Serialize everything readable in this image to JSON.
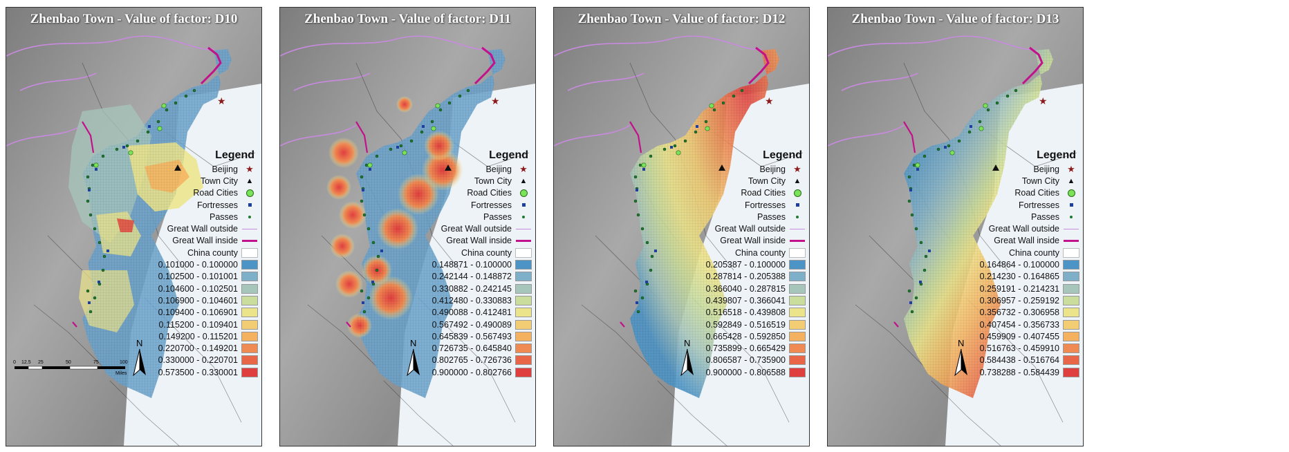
{
  "colors": {
    "water_bg": "#eef3f8",
    "terrain": "#9a9a9a",
    "blue": "#6aa2cc",
    "yellow": "#ece48a",
    "red": "#e1483e",
    "beijing": "#8b1a1a",
    "road_city": "#7be35a",
    "fortress": "#1f3f9f",
    "pass": "#1e7a2e",
    "wall_outside": "#c88adf",
    "wall_inside": "#c2128b"
  },
  "common_legend": {
    "title": "Legend",
    "beijing": "Beijing",
    "town_city": "Town City",
    "road_cities": "Road Cities",
    "fortresses": "Fortresses",
    "passes": "Passes",
    "wall_outside": "Great Wall outside",
    "wall_inside": "Great Wall inside",
    "county": "China county"
  },
  "scale": {
    "ticks": [
      "0",
      "12.5",
      "25",
      "50",
      "75",
      "100"
    ],
    "unit": "Miles"
  },
  "north_label": "N",
  "class_colors": [
    "#4c94c6",
    "#7eafc8",
    "#a7c6bb",
    "#cadd9c",
    "#ece48a",
    "#f3cd74",
    "#f4b15f",
    "#ef8b52",
    "#e86547",
    "#e03f3f"
  ],
  "panels": [
    {
      "title": "Zhenbao Town - Value of factor: D10",
      "classes": [
        "0.101000 - 0.100000",
        "0.102500 - 0.101001",
        "0.104600 - 0.102501",
        "0.106900 - 0.104601",
        "0.109400 - 0.106901",
        "0.115200 - 0.109401",
        "0.149200 - 0.115201",
        "0.220700 - 0.149201",
        "0.330000 - 0.220701",
        "0.573500 - 0.330001"
      ]
    },
    {
      "title": "Zhenbao Town - Value of factor: D11",
      "classes": [
        "0.148871 - 0.100000",
        "0.242144 - 0.148872",
        "0.330882 - 0.242145",
        "0.412480 - 0.330883",
        "0.490088 - 0.412481",
        "0.567492 - 0.490089",
        "0.645839 - 0.567493",
        "0.726735 - 0.645840",
        "0.802765 - 0.726736",
        "0.900000 - 0.802766"
      ]
    },
    {
      "title": "Zhenbao Town - Value of factor: D12",
      "classes": [
        "0.205387 - 0.100000",
        "0.287814 - 0.205388",
        "0.366040 - 0.287815",
        "0.439807 - 0.366041",
        "0.516518 - 0.439808",
        "0.592849 - 0.516519",
        "0.665428 - 0.592850",
        "0.735899 - 0.665429",
        "0.806587 - 0.735900",
        "0.900000 - 0.806588"
      ]
    },
    {
      "title": "Zhenbao Town - Value of factor: D13",
      "classes": [
        "0.164864 - 0.100000",
        "0.214230 - 0.164865",
        "0.259191 - 0.214231",
        "0.306957 - 0.259192",
        "0.356732 - 0.306958",
        "0.407454 - 0.356733",
        "0.459909 - 0.407455",
        "0.516763 - 0.459910",
        "0.584438 - 0.516764",
        "0.738288 - 0.584439"
      ]
    }
  ]
}
